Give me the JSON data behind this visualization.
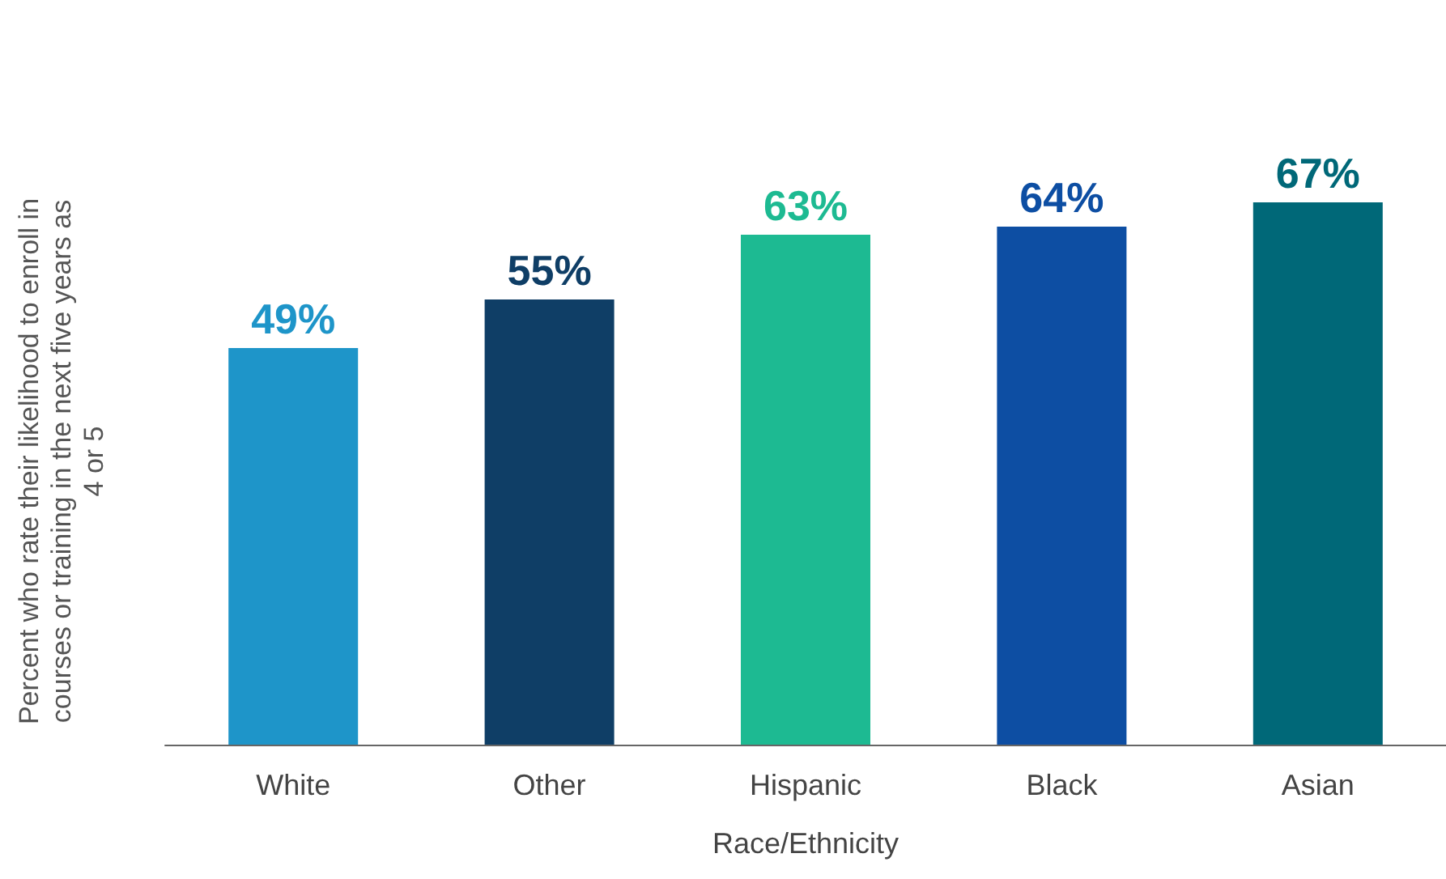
{
  "chart_data": {
    "type": "bar",
    "xlabel": "Race/Ethnicity",
    "ylabel": "Percent who rate their likelihood to enroll in courses or training in the next five years as 4 or 5",
    "categories": [
      "White",
      "Other",
      "Hispanic",
      "Black",
      "Asian"
    ],
    "values": [
      49,
      55,
      63,
      64,
      67
    ],
    "colors": [
      "#1e95c9",
      "#0f3e66",
      "#1dba92",
      "#0d4ea3",
      "#006878"
    ],
    "value_labels": [
      "49%",
      "55%",
      "63%",
      "64%",
      "67%"
    ],
    "tick_labels": "x"
  }
}
